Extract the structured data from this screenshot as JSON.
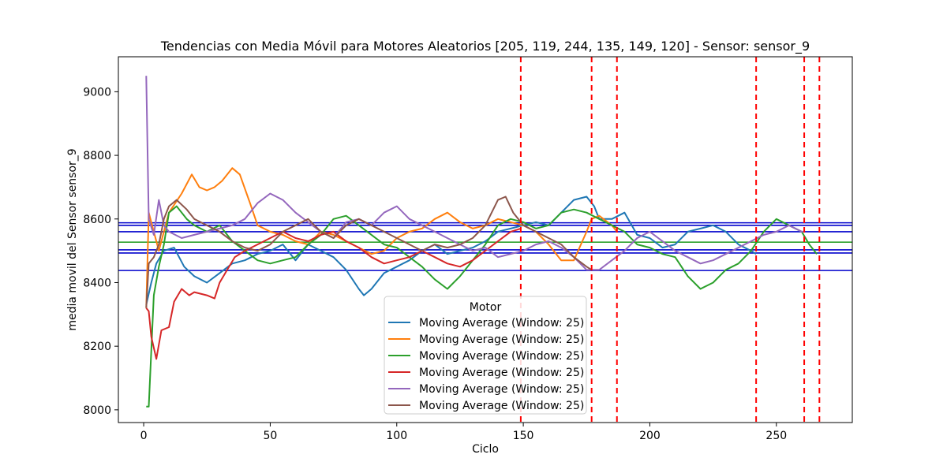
{
  "chart_data": {
    "type": "line",
    "title": "Tendencias con Media Móvil para Motores Aleatorios [205, 119, 244, 135, 149, 120] - Sensor: sensor_9",
    "xlabel": "Ciclo",
    "ylabel": "media movil del Sensor sensor_9",
    "xlim": [
      -10,
      280
    ],
    "ylim": [
      7960,
      9110
    ],
    "x_ticks": [
      0,
      50,
      100,
      150,
      200,
      250
    ],
    "y_ticks": [
      8000,
      8200,
      8400,
      8600,
      8800,
      9000
    ],
    "grid": false,
    "legend": {
      "title": "Motor",
      "placement": "lower-center",
      "entries": [
        "Moving Average (Window: 25)",
        "Moving Average (Window: 25)",
        "Moving Average (Window: 25)",
        "Moving Average (Window: 25)",
        "Moving Average (Window: 25)",
        "Moving Average (Window: 25)"
      ]
    },
    "series": [
      {
        "name": "Moving Average (Window: 25)",
        "color": "#1f77b4",
        "points": [
          [
            1,
            8330
          ],
          [
            3,
            8400
          ],
          [
            5,
            8460
          ],
          [
            8,
            8500
          ],
          [
            12,
            8510
          ],
          [
            16,
            8450
          ],
          [
            20,
            8420
          ],
          [
            25,
            8400
          ],
          [
            30,
            8430
          ],
          [
            35,
            8460
          ],
          [
            40,
            8470
          ],
          [
            45,
            8490
          ],
          [
            50,
            8500
          ],
          [
            55,
            8520
          ],
          [
            60,
            8470
          ],
          [
            65,
            8520
          ],
          [
            70,
            8500
          ],
          [
            75,
            8480
          ],
          [
            80,
            8440
          ],
          [
            85,
            8380
          ],
          [
            87,
            8360
          ],
          [
            90,
            8380
          ],
          [
            95,
            8430
          ],
          [
            100,
            8450
          ],
          [
            105,
            8470
          ],
          [
            110,
            8500
          ],
          [
            115,
            8520
          ],
          [
            120,
            8490
          ],
          [
            125,
            8500
          ],
          [
            130,
            8510
          ],
          [
            135,
            8530
          ],
          [
            140,
            8560
          ],
          [
            145,
            8570
          ],
          [
            150,
            8580
          ],
          [
            155,
            8590
          ],
          [
            160,
            8580
          ],
          [
            165,
            8620
          ],
          [
            170,
            8660
          ],
          [
            175,
            8670
          ],
          [
            178,
            8640
          ],
          [
            180,
            8600
          ],
          [
            185,
            8600
          ],
          [
            190,
            8620
          ],
          [
            195,
            8550
          ],
          [
            200,
            8540
          ],
          [
            205,
            8510
          ],
          [
            210,
            8520
          ],
          [
            215,
            8560
          ],
          [
            220,
            8570
          ],
          [
            225,
            8580
          ],
          [
            230,
            8560
          ],
          [
            235,
            8520
          ],
          [
            240,
            8500
          ],
          [
            242,
            8490
          ]
        ]
      },
      {
        "name": "Moving Average (Window: 25)",
        "color": "#ff7f0e",
        "points": [
          [
            1,
            8320
          ],
          [
            2,
            8620
          ],
          [
            4,
            8560
          ],
          [
            6,
            8500
          ],
          [
            8,
            8560
          ],
          [
            10,
            8620
          ],
          [
            15,
            8680
          ],
          [
            19,
            8740
          ],
          [
            22,
            8700
          ],
          [
            25,
            8690
          ],
          [
            28,
            8700
          ],
          [
            31,
            8720
          ],
          [
            35,
            8760
          ],
          [
            38,
            8740
          ],
          [
            42,
            8650
          ],
          [
            45,
            8580
          ],
          [
            50,
            8560
          ],
          [
            55,
            8550
          ],
          [
            60,
            8530
          ],
          [
            65,
            8520
          ],
          [
            70,
            8560
          ],
          [
            75,
            8550
          ],
          [
            80,
            8530
          ],
          [
            85,
            8510
          ],
          [
            90,
            8490
          ],
          [
            95,
            8500
          ],
          [
            100,
            8540
          ],
          [
            105,
            8560
          ],
          [
            110,
            8570
          ],
          [
            115,
            8600
          ],
          [
            120,
            8620
          ],
          [
            125,
            8590
          ],
          [
            130,
            8570
          ],
          [
            135,
            8580
          ],
          [
            140,
            8600
          ],
          [
            145,
            8590
          ],
          [
            150,
            8580
          ],
          [
            155,
            8560
          ],
          [
            160,
            8520
          ],
          [
            165,
            8470
          ],
          [
            170,
            8470
          ],
          [
            175,
            8560
          ],
          [
            177,
            8600
          ],
          [
            180,
            8610
          ],
          [
            185,
            8580
          ],
          [
            187,
            8560
          ]
        ]
      },
      {
        "name": "Moving Average (Window: 25)",
        "color": "#2ca02c",
        "points": [
          [
            1,
            8010
          ],
          [
            2,
            8010
          ],
          [
            4,
            8360
          ],
          [
            6,
            8450
          ],
          [
            8,
            8520
          ],
          [
            10,
            8620
          ],
          [
            13,
            8640
          ],
          [
            17,
            8600
          ],
          [
            20,
            8580
          ],
          [
            25,
            8560
          ],
          [
            30,
            8580
          ],
          [
            35,
            8530
          ],
          [
            40,
            8500
          ],
          [
            45,
            8470
          ],
          [
            50,
            8460
          ],
          [
            55,
            8470
          ],
          [
            60,
            8480
          ],
          [
            65,
            8520
          ],
          [
            70,
            8550
          ],
          [
            75,
            8600
          ],
          [
            80,
            8610
          ],
          [
            85,
            8580
          ],
          [
            90,
            8550
          ],
          [
            95,
            8520
          ],
          [
            100,
            8510
          ],
          [
            105,
            8480
          ],
          [
            110,
            8450
          ],
          [
            115,
            8410
          ],
          [
            120,
            8380
          ],
          [
            125,
            8420
          ],
          [
            130,
            8470
          ],
          [
            135,
            8520
          ],
          [
            140,
            8580
          ],
          [
            145,
            8600
          ],
          [
            150,
            8590
          ],
          [
            155,
            8570
          ],
          [
            160,
            8580
          ],
          [
            165,
            8620
          ],
          [
            170,
            8630
          ],
          [
            175,
            8620
          ],
          [
            180,
            8600
          ],
          [
            185,
            8580
          ],
          [
            190,
            8560
          ],
          [
            195,
            8520
          ],
          [
            200,
            8510
          ],
          [
            205,
            8490
          ],
          [
            210,
            8480
          ],
          [
            215,
            8420
          ],
          [
            220,
            8380
          ],
          [
            225,
            8400
          ],
          [
            230,
            8440
          ],
          [
            235,
            8460
          ],
          [
            240,
            8500
          ],
          [
            245,
            8560
          ],
          [
            250,
            8600
          ],
          [
            255,
            8580
          ],
          [
            260,
            8560
          ],
          [
            263,
            8520
          ],
          [
            266,
            8490
          ]
        ]
      },
      {
        "name": "Moving Average (Window: 25)",
        "color": "#d62728",
        "points": [
          [
            1,
            8320
          ],
          [
            2,
            8310
          ],
          [
            3,
            8230
          ],
          [
            5,
            8160
          ],
          [
            7,
            8250
          ],
          [
            10,
            8260
          ],
          [
            12,
            8340
          ],
          [
            15,
            8380
          ],
          [
            18,
            8360
          ],
          [
            20,
            8370
          ],
          [
            25,
            8360
          ],
          [
            28,
            8350
          ],
          [
            30,
            8400
          ],
          [
            33,
            8440
          ],
          [
            36,
            8480
          ],
          [
            40,
            8500
          ],
          [
            45,
            8520
          ],
          [
            50,
            8540
          ],
          [
            55,
            8560
          ],
          [
            60,
            8540
          ],
          [
            65,
            8530
          ],
          [
            70,
            8550
          ],
          [
            75,
            8560
          ],
          [
            80,
            8530
          ],
          [
            85,
            8510
          ],
          [
            90,
            8480
          ],
          [
            95,
            8460
          ],
          [
            100,
            8470
          ],
          [
            105,
            8480
          ],
          [
            110,
            8500
          ],
          [
            115,
            8480
          ],
          [
            120,
            8460
          ],
          [
            125,
            8450
          ],
          [
            130,
            8470
          ],
          [
            135,
            8500
          ],
          [
            140,
            8530
          ],
          [
            145,
            8560
          ],
          [
            149,
            8570
          ]
        ]
      },
      {
        "name": "Moving Average (Window: 25)",
        "color": "#9467bd",
        "points": [
          [
            1,
            9050
          ],
          [
            2,
            8600
          ],
          [
            4,
            8550
          ],
          [
            6,
            8660
          ],
          [
            8,
            8580
          ],
          [
            10,
            8560
          ],
          [
            15,
            8540
          ],
          [
            20,
            8550
          ],
          [
            25,
            8560
          ],
          [
            30,
            8570
          ],
          [
            35,
            8580
          ],
          [
            40,
            8600
          ],
          [
            45,
            8650
          ],
          [
            50,
            8680
          ],
          [
            55,
            8660
          ],
          [
            60,
            8620
          ],
          [
            65,
            8590
          ],
          [
            70,
            8560
          ],
          [
            75,
            8540
          ],
          [
            80,
            8590
          ],
          [
            85,
            8600
          ],
          [
            90,
            8580
          ],
          [
            95,
            8620
          ],
          [
            100,
            8640
          ],
          [
            105,
            8600
          ],
          [
            110,
            8580
          ],
          [
            115,
            8560
          ],
          [
            120,
            8540
          ],
          [
            125,
            8520
          ],
          [
            130,
            8500
          ],
          [
            135,
            8510
          ],
          [
            140,
            8480
          ],
          [
            145,
            8490
          ],
          [
            150,
            8500
          ],
          [
            155,
            8520
          ],
          [
            160,
            8530
          ],
          [
            165,
            8510
          ],
          [
            170,
            8480
          ],
          [
            175,
            8440
          ],
          [
            180,
            8440
          ],
          [
            185,
            8470
          ],
          [
            190,
            8500
          ],
          [
            195,
            8540
          ],
          [
            200,
            8560
          ],
          [
            205,
            8530
          ],
          [
            210,
            8500
          ],
          [
            215,
            8480
          ],
          [
            220,
            8460
          ],
          [
            225,
            8470
          ],
          [
            230,
            8490
          ],
          [
            235,
            8510
          ],
          [
            240,
            8530
          ],
          [
            245,
            8550
          ],
          [
            250,
            8560
          ],
          [
            255,
            8580
          ],
          [
            260,
            8560
          ],
          [
            261,
            8560
          ]
        ]
      },
      {
        "name": "Moving Average (Window: 25)",
        "color": "#8c564b",
        "points": [
          [
            1,
            8320
          ],
          [
            2,
            8460
          ],
          [
            4,
            8480
          ],
          [
            6,
            8520
          ],
          [
            8,
            8600
          ],
          [
            10,
            8640
          ],
          [
            13,
            8660
          ],
          [
            17,
            8630
          ],
          [
            20,
            8600
          ],
          [
            25,
            8580
          ],
          [
            30,
            8560
          ],
          [
            35,
            8530
          ],
          [
            40,
            8510
          ],
          [
            45,
            8500
          ],
          [
            50,
            8520
          ],
          [
            55,
            8560
          ],
          [
            60,
            8580
          ],
          [
            65,
            8600
          ],
          [
            70,
            8560
          ],
          [
            75,
            8540
          ],
          [
            80,
            8580
          ],
          [
            85,
            8600
          ],
          [
            90,
            8580
          ],
          [
            95,
            8560
          ],
          [
            100,
            8540
          ],
          [
            105,
            8520
          ],
          [
            110,
            8500
          ],
          [
            115,
            8520
          ],
          [
            120,
            8510
          ],
          [
            125,
            8520
          ],
          [
            130,
            8540
          ],
          [
            135,
            8580
          ],
          [
            140,
            8660
          ],
          [
            143,
            8670
          ],
          [
            146,
            8620
          ],
          [
            150,
            8580
          ],
          [
            155,
            8560
          ],
          [
            160,
            8540
          ],
          [
            165,
            8520
          ],
          [
            170,
            8480
          ],
          [
            175,
            8450
          ],
          [
            177,
            8440
          ]
        ]
      }
    ],
    "horizontal_lines": [
      {
        "y": 8588,
        "color": "#0000cc"
      },
      {
        "y": 8580,
        "color": "#0000cc"
      },
      {
        "y": 8560,
        "color": "#0000cc"
      },
      {
        "y": 8527,
        "color": "#2ca02c"
      },
      {
        "y": 8503,
        "color": "#0000cc"
      },
      {
        "y": 8493,
        "color": "#0000cc"
      },
      {
        "y": 8438,
        "color": "#0000cc"
      }
    ],
    "vertical_lines": [
      {
        "x": 149,
        "color": "#ff0000",
        "style": "dashed"
      },
      {
        "x": 177,
        "color": "#ff0000",
        "style": "dashed"
      },
      {
        "x": 187,
        "color": "#ff0000",
        "style": "dashed"
      },
      {
        "x": 242,
        "color": "#ff0000",
        "style": "dashed"
      },
      {
        "x": 261,
        "color": "#ff0000",
        "style": "dashed"
      },
      {
        "x": 267,
        "color": "#ff0000",
        "style": "dashed"
      }
    ]
  }
}
